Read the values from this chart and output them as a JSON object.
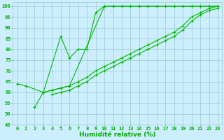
{
  "x": [
    0,
    1,
    2,
    3,
    4,
    5,
    6,
    7,
    8,
    9,
    10,
    11,
    12,
    13,
    14,
    15,
    16,
    17,
    18,
    19,
    20,
    21,
    22,
    23
  ],
  "line1": [
    64,
    63,
    null,
    60,
    null,
    86,
    76,
    80,
    80,
    97,
    100,
    100,
    100,
    100,
    100,
    100,
    100,
    100,
    100,
    100,
    100,
    100,
    100,
    100
  ],
  "line2": [
    null,
    null,
    53,
    60,
    61,
    null,
    63,
    null,
    null,
    null,
    100,
    100,
    100,
    100,
    100,
    100,
    100,
    100,
    100,
    100,
    100,
    100,
    100,
    100
  ],
  "line3": [
    null,
    null,
    null,
    60,
    61,
    62,
    63,
    65,
    67,
    70,
    72,
    74,
    76,
    78,
    80,
    82,
    84,
    86,
    88,
    91,
    95,
    97,
    99,
    100
  ],
  "line4": [
    null,
    null,
    null,
    null,
    59,
    60,
    61,
    63,
    65,
    68,
    70,
    72,
    74,
    76,
    78,
    80,
    82,
    84,
    86,
    89,
    93,
    96,
    98,
    99
  ],
  "bg_color": "#cceeff",
  "line_color": "#00bb00",
  "marker": "+",
  "xlabel": "Humidité relative (%)",
  "ylim": [
    45,
    102
  ],
  "xlim": [
    -0.5,
    23.5
  ],
  "yticks": [
    45,
    50,
    55,
    60,
    65,
    70,
    75,
    80,
    85,
    90,
    95,
    100
  ],
  "xticks": [
    0,
    1,
    2,
    3,
    4,
    5,
    6,
    7,
    8,
    9,
    10,
    11,
    12,
    13,
    14,
    15,
    16,
    17,
    18,
    19,
    20,
    21,
    22,
    23
  ],
  "grid_color": "#99cccc",
  "font_color": "#00aa00",
  "xlabel_fontsize": 6.5,
  "tick_fontsize": 5.0,
  "figsize": [
    3.2,
    2.0
  ],
  "dpi": 100
}
